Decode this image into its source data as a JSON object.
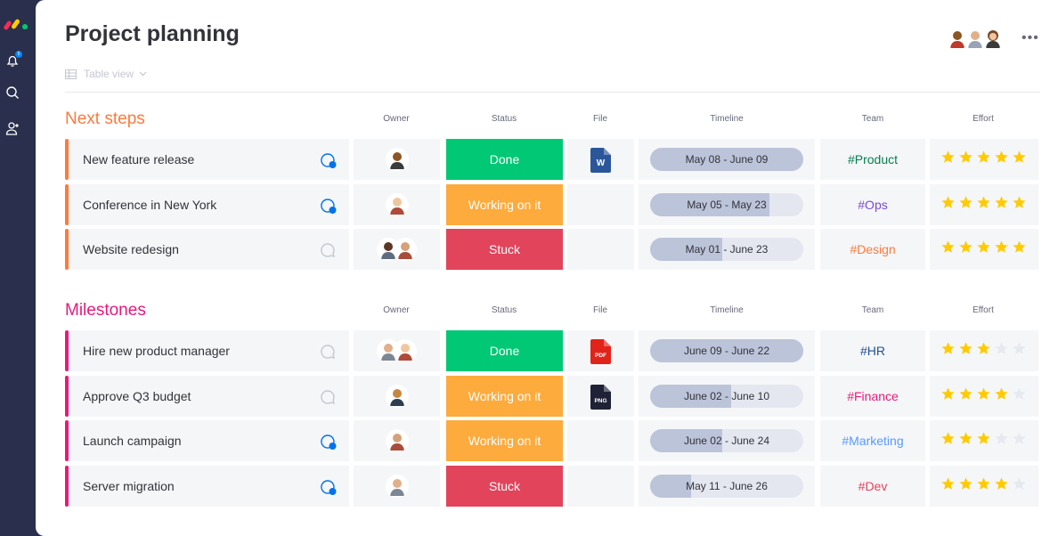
{
  "app": {
    "brand_color": "#292f4c"
  },
  "rail": {
    "notification_count": "5"
  },
  "header": {
    "title": "Project planning",
    "view_label": "Table view",
    "more_label": "•••"
  },
  "columns": {
    "owner": "Owner",
    "status": "Status",
    "file": "File",
    "timeline": "Timeline",
    "team": "Team",
    "effort": "Effort"
  },
  "status_colors": {
    "Done": "#00c875",
    "Working on it": "#fdab3d",
    "Stuck": "#e2445c"
  },
  "groups": [
    {
      "title": "Next steps",
      "color": "#ff7a3d",
      "rows": [
        {
          "name": "New feature release",
          "chat_active": true,
          "owners": 1,
          "status": "Done",
          "file": "W",
          "file_type": "word",
          "timeline": "May 08 - June 09",
          "timeline_progress": 1.0,
          "team": "#Product",
          "team_color": "#037f4c",
          "effort": 5
        },
        {
          "name": "Conference in New York",
          "chat_active": true,
          "owners": 1,
          "status": "Working on it",
          "file": "",
          "file_type": "",
          "timeline": "May 05 - May 23",
          "timeline_progress": 0.78,
          "team": "#Ops",
          "team_color": "#784bd1",
          "effort": 5
        },
        {
          "name": "Website redesign",
          "chat_active": false,
          "owners": 2,
          "status": "Stuck",
          "file": "",
          "file_type": "",
          "timeline": "May 01 - June 23",
          "timeline_progress": 0.47,
          "team": "#Design",
          "team_color": "#ff7a3d",
          "effort": 5
        }
      ]
    },
    {
      "title": "Milestones",
      "color": "#e8197d",
      "rows": [
        {
          "name": "Hire new product manager",
          "chat_active": false,
          "owners": 2,
          "status": "Done",
          "file": "PDF",
          "file_type": "pdf",
          "timeline": "June 09 - June 22",
          "timeline_progress": 1.0,
          "team": "#HR",
          "team_color": "#225091",
          "effort": 3
        },
        {
          "name": "Approve Q3 budget",
          "chat_active": false,
          "owners": 1,
          "status": "Working on it",
          "file": "PNG",
          "file_type": "png",
          "timeline": "June 02 - June 10",
          "timeline_progress": 0.53,
          "team": "#Finance",
          "team_color": "#e8197d",
          "effort": 4
        },
        {
          "name": "Launch campaign",
          "chat_active": true,
          "owners": 1,
          "status": "Working on it",
          "file": "",
          "file_type": "",
          "timeline": "June 02  - June 24",
          "timeline_progress": 0.47,
          "team": "#Marketing",
          "team_color": "#579bfc",
          "effort": 3
        },
        {
          "name": "Server migration",
          "chat_active": true,
          "owners": 1,
          "status": "Stuck",
          "file": "",
          "file_type": "",
          "timeline": "May 11 - June 26",
          "timeline_progress": 0.27,
          "team": "#Dev",
          "team_color": "#e2445c",
          "effort": 4
        }
      ]
    }
  ]
}
